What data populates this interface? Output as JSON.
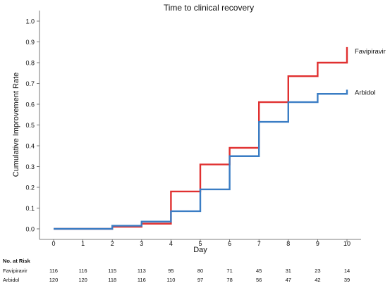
{
  "chart_data": {
    "type": "line",
    "step": true,
    "title": "Time to clinical recovery",
    "xlabel": "Day",
    "ylabel": "Cumulative Improvement Rate",
    "xlim": [
      0,
      10
    ],
    "ylim": [
      0,
      1.0
    ],
    "x_ticks": [
      0,
      1,
      2,
      3,
      4,
      5,
      6,
      7,
      8,
      9,
      10
    ],
    "y_ticks": [
      "0.0",
      "0.1",
      "0.2",
      "0.3",
      "0.4",
      "0.5",
      "0.6",
      "0.7",
      "0.8",
      "0.9",
      "1.0"
    ],
    "grid": false,
    "series": [
      {
        "name": "Favipiravir",
        "color": "#e03030",
        "x": [
          0,
          2,
          3,
          4,
          5,
          6,
          7,
          8,
          9,
          10,
          10
        ],
        "y": [
          0.0,
          0.01,
          0.025,
          0.18,
          0.31,
          0.39,
          0.61,
          0.735,
          0.8,
          0.8,
          0.875
        ]
      },
      {
        "name": "Arbidol",
        "color": "#3a7dc4",
        "x": [
          0,
          2,
          3,
          4,
          5,
          6,
          7,
          8,
          9,
          10,
          10
        ],
        "y": [
          0.0,
          0.015,
          0.035,
          0.085,
          0.19,
          0.35,
          0.515,
          0.61,
          0.65,
          0.65,
          0.67
        ]
      }
    ],
    "risk_table": {
      "title": "No. at Risk",
      "rows": [
        {
          "label": "Favipiravir",
          "values": [
            "116",
            "116",
            "115",
            "113",
            "95",
            "80",
            "71",
            "45",
            "31",
            "23",
            "14"
          ]
        },
        {
          "label": "Arbidol",
          "values": [
            "120",
            "120",
            "118",
            "116",
            "110",
            "97",
            "78",
            "56",
            "47",
            "42",
            "39"
          ]
        }
      ]
    }
  }
}
